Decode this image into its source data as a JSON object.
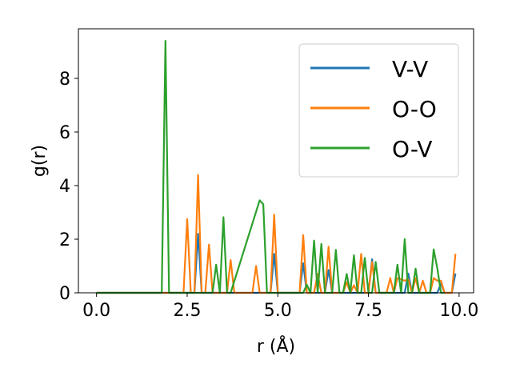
{
  "chart_data": {
    "type": "line",
    "xlabel": "r (Å)",
    "ylabel": "g(r)",
    "xlim": [
      -0.5,
      10.4
    ],
    "ylim": [
      0,
      9.85
    ],
    "xticks": [
      "0.0",
      "2.5",
      "5.0",
      "7.5",
      "10.0"
    ],
    "yticks": [
      "0",
      "2",
      "4",
      "6",
      "8"
    ],
    "grid": false,
    "legend_position": "top-right",
    "series": [
      {
        "name": "V-V",
        "color": "#1f77b4",
        "x": [
          0.0,
          2.7,
          2.8,
          2.9,
          4.8,
          4.9,
          5.0,
          5.6,
          5.7,
          5.8,
          6.3,
          6.4,
          6.5,
          7.5,
          7.6,
          7.7,
          8.5,
          8.6,
          8.7,
          9.4,
          9.5,
          9.6,
          9.8,
          9.9
        ],
        "values": [
          0.0,
          0.0,
          2.2,
          0.0,
          0.0,
          1.45,
          0.0,
          0.0,
          1.1,
          0.0,
          0.0,
          0.85,
          0.0,
          0.0,
          1.25,
          0.0,
          0.0,
          0.72,
          0.0,
          0.0,
          0.35,
          0.0,
          0.0,
          0.72
        ]
      },
      {
        "name": "O-O",
        "color": "#ff7f0e",
        "x": [
          0.0,
          2.4,
          2.5,
          2.6,
          2.7,
          2.8,
          2.9,
          3.0,
          3.1,
          3.2,
          3.6,
          3.7,
          3.8,
          4.3,
          4.4,
          4.5,
          4.8,
          4.9,
          5.0,
          5.6,
          5.7,
          5.8,
          6.0,
          6.1,
          6.2,
          6.3,
          6.4,
          6.5,
          6.8,
          6.9,
          7.0,
          7.1,
          7.2,
          7.3,
          7.4,
          7.5,
          7.6,
          7.7,
          7.8,
          7.9,
          8.0,
          8.1,
          8.2,
          8.3,
          8.4,
          8.5,
          8.6,
          8.7,
          8.8,
          8.9,
          9.0,
          9.1,
          9.2,
          9.3,
          9.4,
          9.5,
          9.6,
          9.7,
          9.8,
          9.9
        ],
        "values": [
          0.0,
          0.0,
          2.75,
          0.0,
          0.0,
          4.4,
          0.0,
          0.0,
          1.8,
          0.0,
          0.0,
          1.22,
          0.0,
          0.0,
          1.0,
          0.0,
          0.0,
          2.92,
          0.0,
          0.0,
          2.15,
          0.0,
          0.0,
          0.7,
          0.0,
          0.0,
          1.72,
          0.0,
          0.0,
          0.4,
          0.0,
          0.28,
          0.0,
          1.45,
          0.0,
          0.0,
          1.15,
          0.0,
          0.0,
          0.0,
          0.0,
          0.55,
          0.0,
          0.55,
          0.5,
          0.45,
          0.5,
          0.0,
          0.55,
          0.0,
          0.45,
          0.0,
          0.0,
          0.55,
          0.45,
          0.45,
          0.0,
          0.0,
          0.0,
          1.45
        ]
      },
      {
        "name": "O-V",
        "color": "#2ca02c",
        "x": [
          0.0,
          1.8,
          1.9,
          2.0,
          3.2,
          3.3,
          3.4,
          3.5,
          3.6,
          3.7,
          4.5,
          4.6,
          4.7,
          5.6,
          5.7,
          5.8,
          5.9,
          6.0,
          6.1,
          6.2,
          6.3,
          6.4,
          6.5,
          6.6,
          6.7,
          6.8,
          6.9,
          7.0,
          7.1,
          7.2,
          7.3,
          7.4,
          7.5,
          7.6,
          7.7,
          7.8,
          7.9,
          8.2,
          8.3,
          8.4,
          8.5,
          8.6,
          8.7,
          8.8,
          8.9,
          9.0,
          9.1,
          9.2,
          9.3,
          9.4,
          9.5,
          9.6
        ],
        "values": [
          0.0,
          0.0,
          9.4,
          0.0,
          0.0,
          1.05,
          0.0,
          2.82,
          0.0,
          0.0,
          3.45,
          3.3,
          0.0,
          0.0,
          0.0,
          0.3,
          0.0,
          1.95,
          0.0,
          1.82,
          0.0,
          0.0,
          0.0,
          1.6,
          0.0,
          0.0,
          0.7,
          0.0,
          1.4,
          0.0,
          0.0,
          1.3,
          0.0,
          0.0,
          1.15,
          0.0,
          0.0,
          0.0,
          1.05,
          0.0,
          2.0,
          0.0,
          0.0,
          0.9,
          0.0,
          0.0,
          0.0,
          0.0,
          1.62,
          0.9,
          0.0,
          0.0
        ]
      }
    ]
  }
}
